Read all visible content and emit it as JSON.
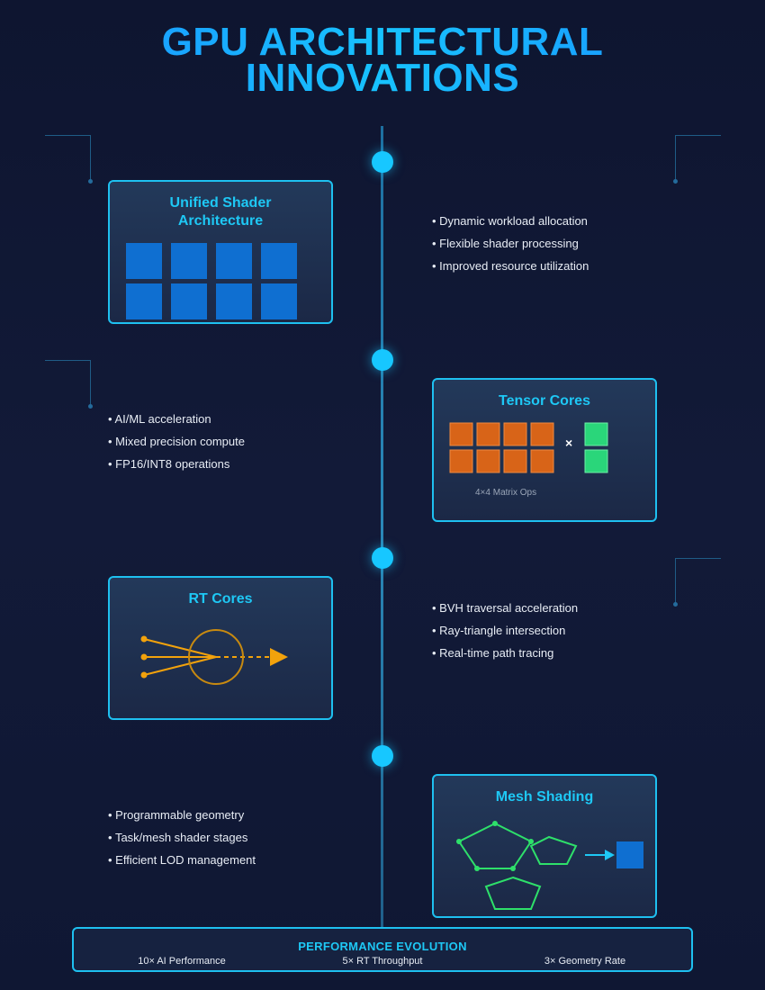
{
  "title": {
    "line1": "GPU ARCHITECTURAL",
    "line2": "INNOVATIONS"
  },
  "sections": [
    {
      "title": "Unified Shader Architecture",
      "bullets": [
        "Dynamic workload allocation",
        "Flexible shader processing",
        "Improved resource utilization"
      ]
    },
    {
      "title": "Tensor Cores",
      "caption": "4×4 Matrix Ops",
      "operator": "×",
      "bullets": [
        "AI/ML acceleration",
        "Mixed precision compute",
        "FP16/INT8 operations"
      ]
    },
    {
      "title": "RT Cores",
      "bullets": [
        "BVH traversal acceleration",
        "Ray-triangle intersection",
        "Real-time path tracing"
      ]
    },
    {
      "title": "Mesh Shading",
      "bullets": [
        "Programmable geometry",
        "Task/mesh shader stages",
        "Efficient LOD management"
      ]
    }
  ],
  "footer": {
    "title": "PERFORMANCE EVOLUTION",
    "stats": [
      "10× AI Performance",
      "5× RT Throughput",
      "3× Geometry Rate"
    ]
  },
  "colors": {
    "accent": "#1ec8f5",
    "shader_block": "#0f6fd1",
    "tensor_block": "#d86418",
    "tensor_vector": "#2ad67a",
    "ray": "#f2a20c",
    "mesh": "#2ee06a",
    "background": "#101834"
  }
}
